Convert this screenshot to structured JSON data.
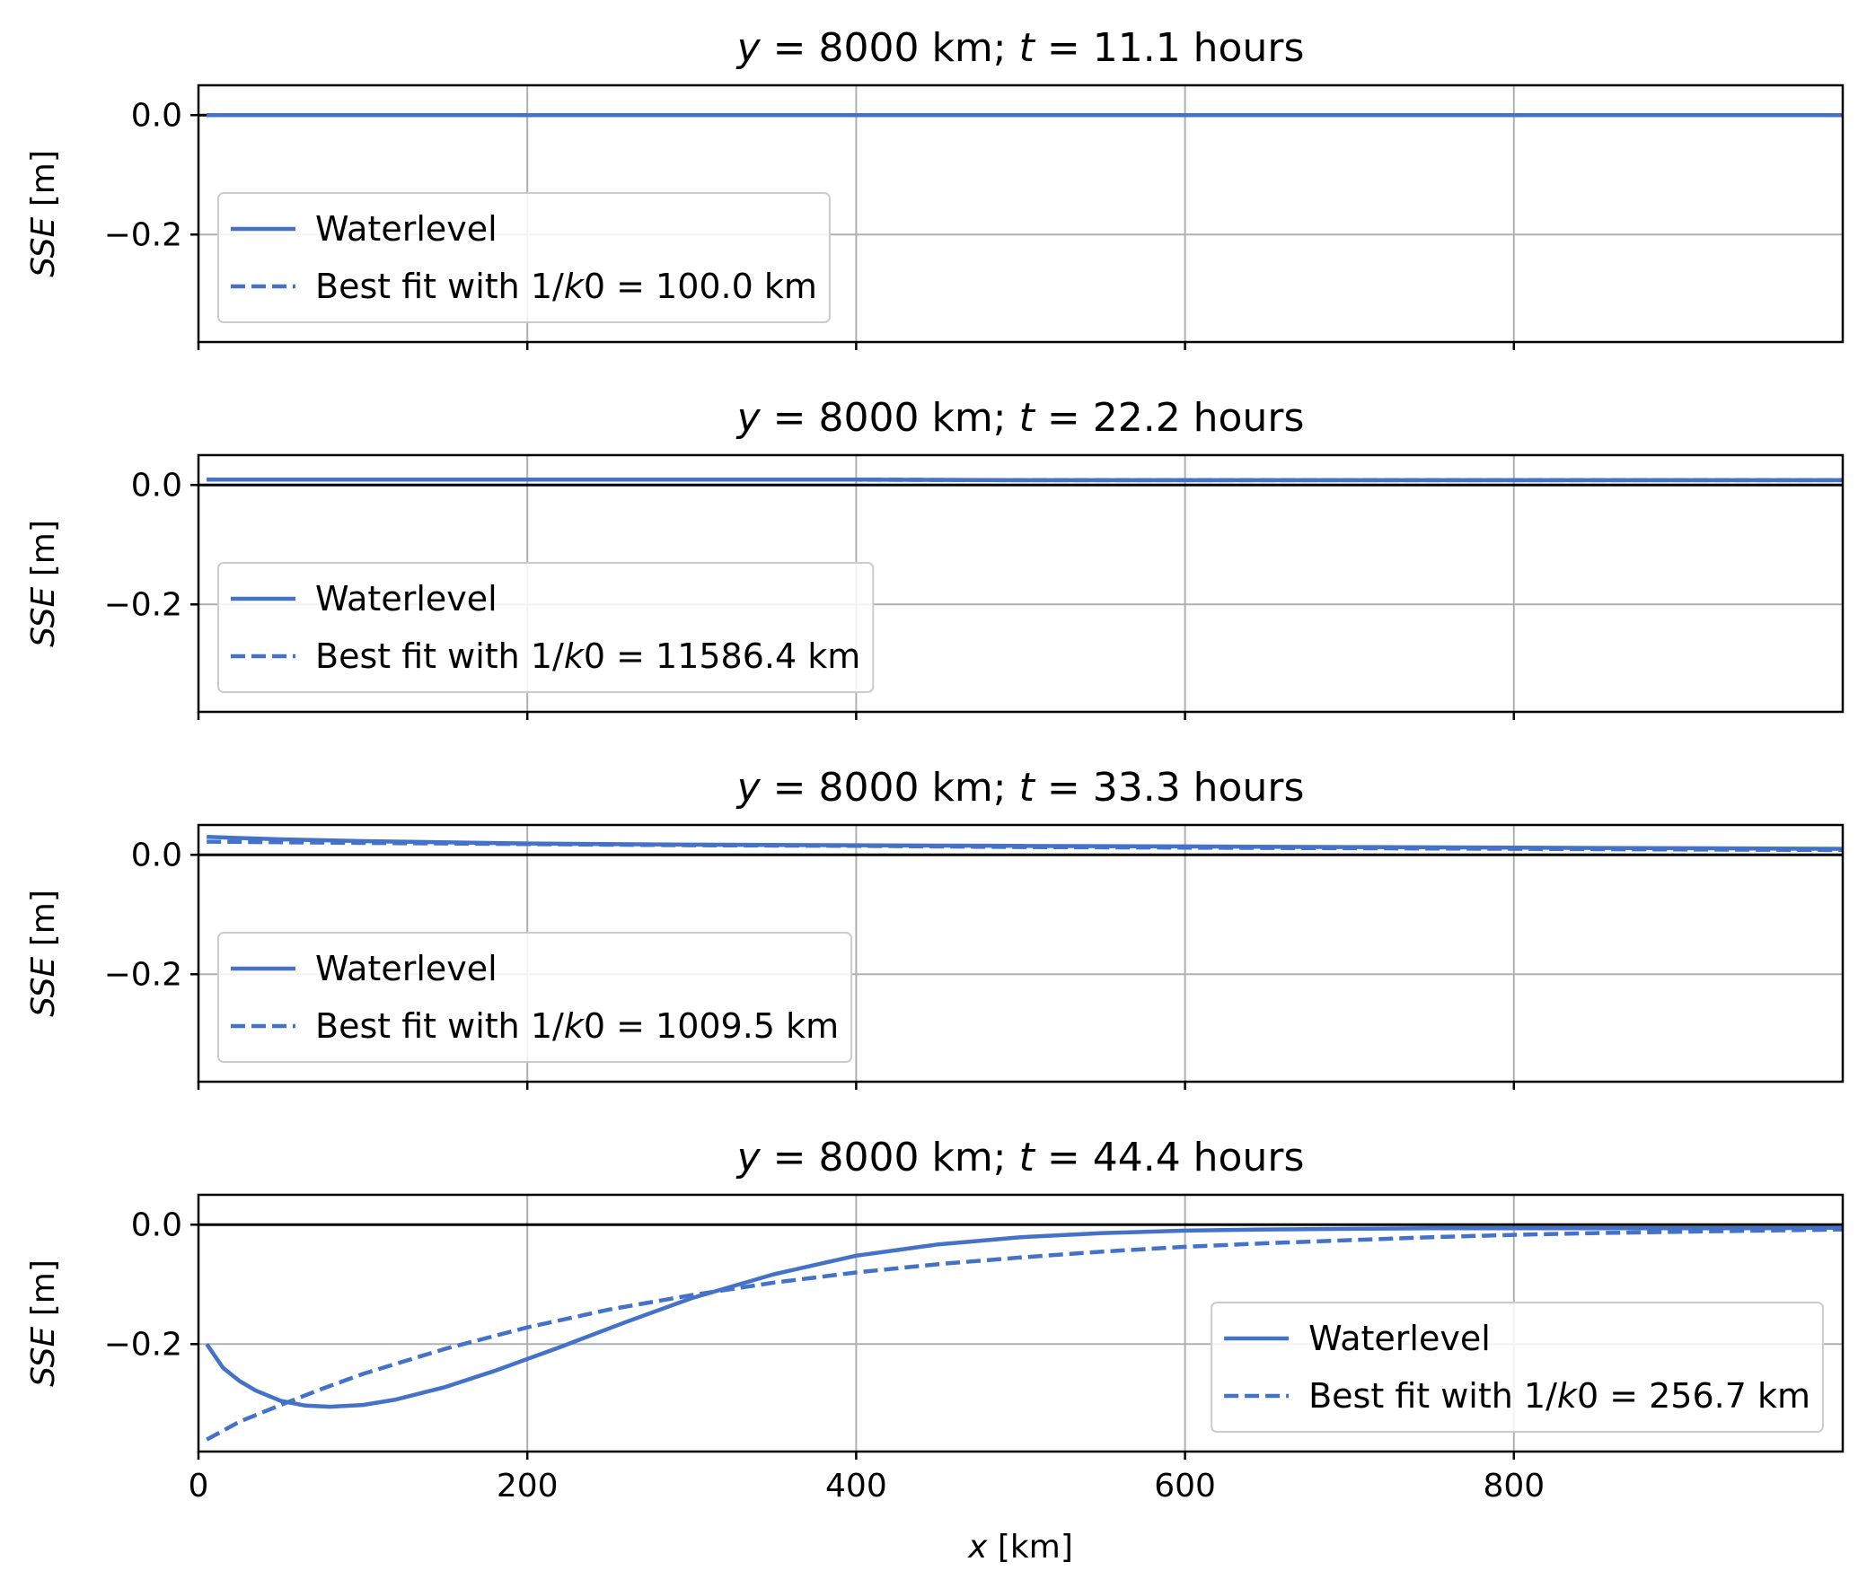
{
  "chart_data": [
    {
      "type": "line",
      "title": {
        "var1": "y",
        "eq1": " = 8000 km; ",
        "var2": "t",
        "eq2": " = 11.1 hours"
      },
      "xlim": [
        0,
        1000
      ],
      "ylim": [
        -0.38,
        0.05
      ],
      "yticks": [
        0.0,
        -0.2
      ],
      "ytick_labels": [
        "0.0",
        "−0.2"
      ],
      "xticks": [
        0,
        200,
        400,
        600,
        800
      ],
      "xtick_labels": [],
      "ylabel": {
        "italic": "SSE",
        "rest": " [m]"
      },
      "xlabel": null,
      "grid": true,
      "legend": {
        "placement": "lower-left",
        "entries": [
          {
            "label": "Waterlevel",
            "style": "solid"
          },
          {
            "label": "Best fit with 1/k0 = 100.0 km",
            "pre": "Best fit with 1/",
            "var": "k",
            "post": "0 = 100.0 km",
            "style": "dashed"
          }
        ]
      },
      "series": [
        {
          "name": "Waterlevel",
          "style": "solid",
          "x": [
            5,
            100,
            200,
            300,
            400,
            500,
            600,
            700,
            800,
            900,
            1000
          ],
          "y": [
            0.0,
            0.0,
            0.0,
            0.0,
            0.0,
            0.0,
            0.0,
            0.0,
            0.0,
            0.0,
            0.0
          ]
        },
        {
          "name": "Best fit with 1/k0 = 100.0 km",
          "style": "dashed",
          "x": [
            5,
            100,
            200,
            300,
            400,
            500,
            600,
            700,
            800,
            900,
            1000
          ],
          "y": [
            0.0,
            0.0,
            0.0,
            0.0,
            0.0,
            0.0,
            0.0,
            0.0,
            0.0,
            0.0,
            0.0
          ]
        }
      ]
    },
    {
      "type": "line",
      "title": {
        "var1": "y",
        "eq1": " = 8000 km; ",
        "var2": "t",
        "eq2": " = 22.2 hours"
      },
      "xlim": [
        0,
        1000
      ],
      "ylim": [
        -0.38,
        0.05
      ],
      "yticks": [
        0.0,
        -0.2
      ],
      "ytick_labels": [
        "0.0",
        "−0.2"
      ],
      "xticks": [
        0,
        200,
        400,
        600,
        800
      ],
      "xtick_labels": [],
      "ylabel": {
        "italic": "SSE",
        "rest": " [m]"
      },
      "xlabel": null,
      "grid": true,
      "legend": {
        "placement": "lower-left",
        "entries": [
          {
            "label": "Waterlevel",
            "style": "solid"
          },
          {
            "label": "Best fit with 1/k0 = 11586.4 km",
            "pre": "Best fit with 1/",
            "var": "k",
            "post": "0 = 11586.4 km",
            "style": "dashed"
          }
        ]
      },
      "series": [
        {
          "name": "Waterlevel",
          "style": "solid",
          "x": [
            5,
            100,
            200,
            300,
            400,
            500,
            600,
            700,
            800,
            900,
            1000
          ],
          "y": [
            0.009,
            0.009,
            0.009,
            0.009,
            0.009,
            0.008,
            0.008,
            0.008,
            0.008,
            0.008,
            0.008
          ]
        },
        {
          "name": "Best fit with 1/k0 = 11586.4 km",
          "style": "dashed",
          "x": [
            5,
            100,
            200,
            300,
            400,
            500,
            600,
            700,
            800,
            900,
            1000
          ],
          "y": [
            0.009,
            0.009,
            0.009,
            0.009,
            0.009,
            0.008,
            0.008,
            0.008,
            0.008,
            0.008,
            0.008
          ]
        }
      ]
    },
    {
      "type": "line",
      "title": {
        "var1": "y",
        "eq1": " = 8000 km; ",
        "var2": "t",
        "eq2": " = 33.3 hours"
      },
      "xlim": [
        0,
        1000
      ],
      "ylim": [
        -0.38,
        0.05
      ],
      "yticks": [
        0.0,
        -0.2
      ],
      "ytick_labels": [
        "0.0",
        "−0.2"
      ],
      "xticks": [
        0,
        200,
        400,
        600,
        800
      ],
      "xtick_labels": [],
      "ylabel": {
        "italic": "SSE",
        "rest": " [m]"
      },
      "xlabel": null,
      "grid": true,
      "legend": {
        "placement": "lower-left",
        "entries": [
          {
            "label": "Waterlevel",
            "style": "solid"
          },
          {
            "label": "Best fit with 1/k0 = 1009.5 km",
            "pre": "Best fit with 1/",
            "var": "k",
            "post": "0 = 1009.5 km",
            "style": "dashed"
          }
        ]
      },
      "series": [
        {
          "name": "Waterlevel",
          "style": "solid",
          "x": [
            5,
            50,
            100,
            200,
            300,
            400,
            500,
            600,
            700,
            800,
            900,
            1000
          ],
          "y": [
            0.03,
            0.026,
            0.023,
            0.019,
            0.017,
            0.016,
            0.015,
            0.014,
            0.013,
            0.012,
            0.011,
            0.01
          ]
        },
        {
          "name": "Best fit with 1/k0 = 1009.5 km",
          "style": "dashed",
          "x": [
            5,
            100,
            200,
            300,
            400,
            500,
            600,
            700,
            800,
            900,
            1000
          ],
          "y": [
            0.022,
            0.02,
            0.018,
            0.016,
            0.015,
            0.013,
            0.012,
            0.011,
            0.01,
            0.009,
            0.008
          ]
        }
      ]
    },
    {
      "type": "line",
      "title": {
        "var1": "y",
        "eq1": " = 8000 km; ",
        "var2": "t",
        "eq2": " = 44.4 hours"
      },
      "xlim": [
        0,
        1000
      ],
      "ylim": [
        -0.38,
        0.05
      ],
      "yticks": [
        0.0,
        -0.2
      ],
      "ytick_labels": [
        "0.0",
        "−0.2"
      ],
      "xticks": [
        0,
        200,
        400,
        600,
        800
      ],
      "xtick_labels": [
        "0",
        "200",
        "400",
        "600",
        "800"
      ],
      "ylabel": {
        "italic": "SSE",
        "rest": " [m]"
      },
      "xlabel": {
        "italic": "x",
        "rest": " [km]"
      },
      "grid": true,
      "legend": {
        "placement": "lower-right",
        "entries": [
          {
            "label": "Waterlevel",
            "style": "solid"
          },
          {
            "label": "Best fit with 1/k0 = 256.7 km",
            "pre": "Best fit with 1/",
            "var": "k",
            "post": "0 = 256.7 km",
            "style": "dashed"
          }
        ]
      },
      "series": [
        {
          "name": "Waterlevel",
          "style": "solid",
          "x": [
            5,
            15,
            25,
            35,
            50,
            65,
            80,
            100,
            120,
            150,
            180,
            220,
            260,
            300,
            350,
            400,
            450,
            500,
            550,
            600,
            650,
            700,
            750,
            800,
            850,
            900,
            950,
            1000
          ],
          "y": [
            -0.2,
            -0.24,
            -0.262,
            -0.278,
            -0.295,
            -0.303,
            -0.305,
            -0.302,
            -0.293,
            -0.272,
            -0.245,
            -0.205,
            -0.163,
            -0.123,
            -0.083,
            -0.052,
            -0.033,
            -0.021,
            -0.014,
            -0.01,
            -0.008,
            -0.007,
            -0.006,
            -0.006,
            -0.006,
            -0.006,
            -0.006,
            -0.005
          ]
        },
        {
          "name": "Best fit with 1/k0 = 256.7 km",
          "style": "dashed",
          "x": [
            5,
            25,
            50,
            75,
            100,
            150,
            200,
            250,
            300,
            350,
            400,
            450,
            500,
            550,
            600,
            650,
            700,
            750,
            800,
            850,
            900,
            950,
            1000
          ],
          "y": [
            -0.36,
            -0.33,
            -0.302,
            -0.275,
            -0.25,
            -0.208,
            -0.172,
            -0.142,
            -0.118,
            -0.097,
            -0.08,
            -0.066,
            -0.055,
            -0.045,
            -0.037,
            -0.031,
            -0.026,
            -0.021,
            -0.017,
            -0.014,
            -0.012,
            -0.01,
            -0.008
          ]
        }
      ]
    }
  ]
}
